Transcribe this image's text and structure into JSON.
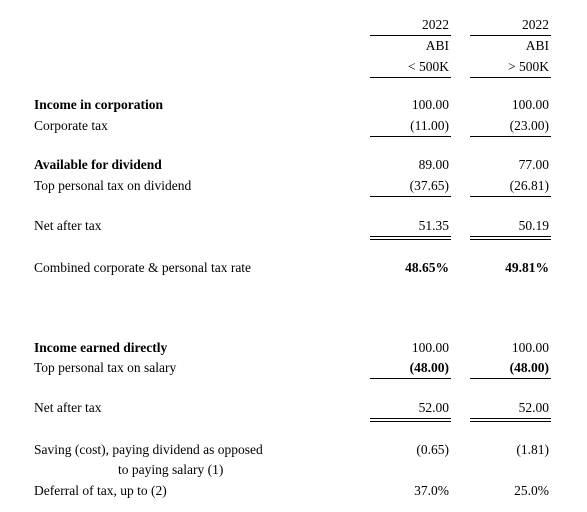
{
  "columns": [
    {
      "year": "2022",
      "entity": "ABI",
      "threshold": "< 500K"
    },
    {
      "year": "2022",
      "entity": "ABI",
      "threshold": "> 500K"
    }
  ],
  "rows": [
    {
      "label": "Income in corporation",
      "values": [
        "100.00",
        "100.00"
      ]
    },
    {
      "label": "Corporate tax",
      "values": [
        "(11.00)",
        "(23.00)"
      ]
    },
    {
      "label": "Available for dividend",
      "values": [
        "89.00",
        "77.00"
      ]
    },
    {
      "label": "Top personal tax on dividend",
      "values": [
        "(37.65)",
        "(26.81)"
      ]
    },
    {
      "label": "Net after tax",
      "values": [
        "51.35",
        "50.19"
      ]
    },
    {
      "label": "Combined corporate & personal tax rate",
      "values": [
        "48.65%",
        "49.81%"
      ]
    },
    {
      "label": "Income earned directly",
      "values": [
        "100.00",
        "100.00"
      ]
    },
    {
      "label": "Top personal tax on salary",
      "values": [
        "(48.00)",
        "(48.00)"
      ]
    },
    {
      "label": "Net after tax",
      "values": [
        "52.00",
        "52.00"
      ]
    },
    {
      "label": "Saving (cost), paying dividend as opposed",
      "label_continued": "to paying salary (1)",
      "values": [
        "(0.65)",
        "(1.81)"
      ]
    },
    {
      "label": "Deferral of tax, up to (2)",
      "values": [
        "37.0%",
        "25.0%"
      ]
    }
  ]
}
